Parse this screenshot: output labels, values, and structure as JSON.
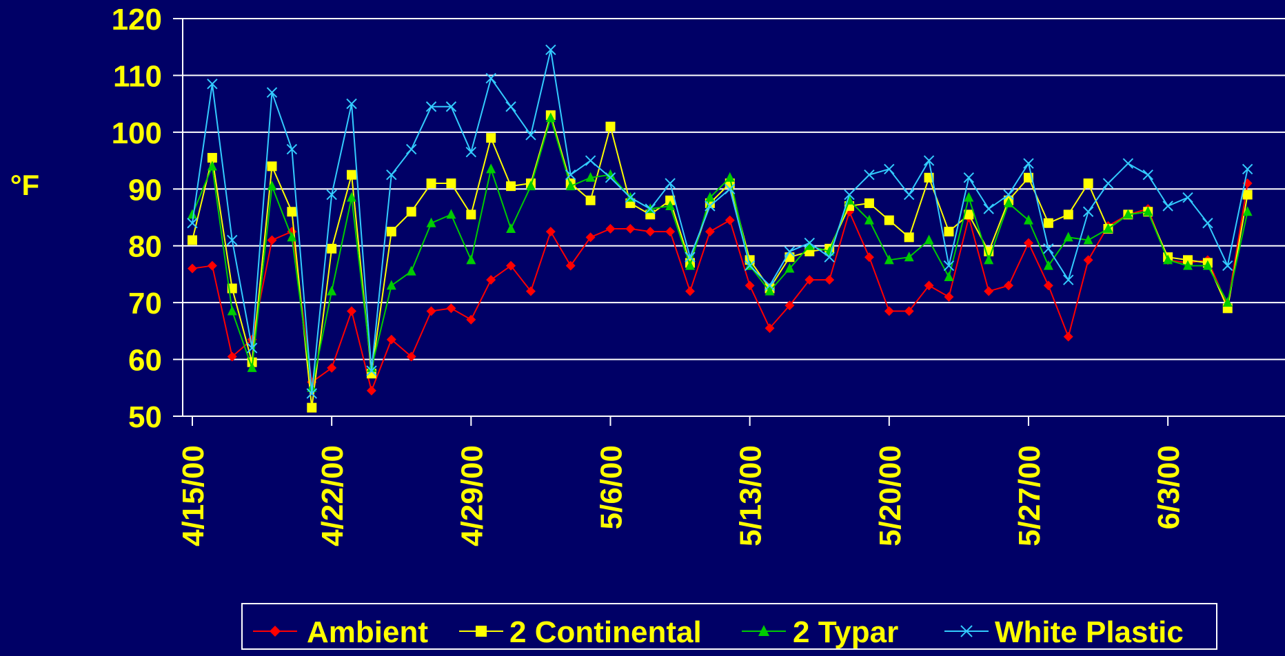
{
  "colors": {
    "background": "#000066",
    "text": "#FFFF00",
    "axis": "#FFFFFF",
    "grid": "#FFFFFF"
  },
  "chart_data": {
    "type": "line",
    "title": "",
    "ylabel": "°F",
    "xlabel": "",
    "ylim": [
      50,
      120
    ],
    "yticks": [
      "50",
      "60",
      "70",
      "80",
      "90",
      "100",
      "110",
      "120"
    ],
    "y_tick_values": [
      50,
      60,
      70,
      80,
      90,
      100,
      110,
      120
    ],
    "grid": true,
    "legend_position": "bottom",
    "x_tick_labels": [
      "4/15/00",
      "4/22/00",
      "4/29/00",
      "5/6/00",
      "5/13/00",
      "5/20/00",
      "5/27/00",
      "6/3/00"
    ],
    "x_tick_dates": [
      "2000-04-15",
      "2000-04-22",
      "2000-04-29",
      "2000-05-06",
      "2000-05-13",
      "2000-05-20",
      "2000-05-27",
      "2000-06-03"
    ],
    "x_range": [
      "2000-04-15",
      "2000-06-08"
    ],
    "series": [
      {
        "name": "Ambient",
        "color": "#FF0000",
        "marker": "diamond",
        "points": [
          [
            "2000-04-15",
            76
          ],
          [
            "2000-04-16",
            76.5
          ],
          [
            "2000-04-17",
            60.5
          ],
          [
            "2000-04-18",
            63.5
          ],
          [
            "2000-04-19",
            81
          ],
          [
            "2000-04-20",
            82.5
          ],
          [
            "2000-04-21",
            56
          ],
          [
            "2000-04-22",
            58.5
          ],
          [
            "2000-04-23",
            68.5
          ],
          [
            "2000-04-24",
            54.5
          ],
          [
            "2000-04-25",
            63.5
          ],
          [
            "2000-04-26",
            60.5
          ],
          [
            "2000-04-27",
            68.5
          ],
          [
            "2000-04-28",
            69
          ],
          [
            "2000-04-29",
            67
          ],
          [
            "2000-04-30",
            74
          ],
          [
            "2000-05-01",
            76.5
          ],
          [
            "2000-05-02",
            72
          ],
          [
            "2000-05-03",
            82.5
          ],
          [
            "2000-05-04",
            76.5
          ],
          [
            "2000-05-05",
            81.5
          ],
          [
            "2000-05-06",
            83
          ],
          [
            "2000-05-07",
            83
          ],
          [
            "2000-05-08",
            82.5
          ],
          [
            "2000-05-09",
            82.5
          ],
          [
            "2000-05-10",
            72
          ],
          [
            "2000-05-11",
            82.5
          ],
          [
            "2000-05-12",
            84.5
          ],
          [
            "2000-05-13",
            73
          ],
          [
            "2000-05-14",
            65.5
          ],
          [
            "2000-05-15",
            69.5
          ],
          [
            "2000-05-16",
            74
          ],
          [
            "2000-05-17",
            74
          ],
          [
            "2000-05-18",
            86
          ],
          [
            "2000-05-19",
            78
          ],
          [
            "2000-05-20",
            68.5
          ],
          [
            "2000-05-21",
            68.5
          ],
          [
            "2000-05-22",
            73
          ],
          [
            "2000-05-23",
            71
          ],
          [
            "2000-05-24",
            85
          ],
          [
            "2000-05-25",
            72
          ],
          [
            "2000-05-26",
            73
          ],
          [
            "2000-05-27",
            80.5
          ],
          [
            "2000-05-28",
            73
          ],
          [
            "2000-05-29",
            64
          ],
          [
            "2000-05-30",
            77.5
          ],
          [
            "2000-05-31",
            83.5
          ],
          [
            "2000-06-01",
            85.5
          ],
          [
            "2000-06-02",
            86.5
          ],
          [
            "2000-06-03",
            77.5
          ],
          [
            "2000-06-04",
            77
          ],
          [
            "2000-06-05",
            77.5
          ],
          [
            "2000-06-06",
            69.5
          ],
          [
            "2000-06-07",
            91
          ]
        ]
      },
      {
        "name": "2 Continental",
        "color": "#FFFF00",
        "marker": "square",
        "points": [
          [
            "2000-04-15",
            81
          ],
          [
            "2000-04-16",
            95.5
          ],
          [
            "2000-04-17",
            72.5
          ],
          [
            "2000-04-18",
            59.5
          ],
          [
            "2000-04-19",
            94
          ],
          [
            "2000-04-20",
            86
          ],
          [
            "2000-04-21",
            51.5
          ],
          [
            "2000-04-22",
            79.5
          ],
          [
            "2000-04-23",
            92.5
          ],
          [
            "2000-04-24",
            57.5
          ],
          [
            "2000-04-25",
            82.5
          ],
          [
            "2000-04-26",
            86
          ],
          [
            "2000-04-27",
            91
          ],
          [
            "2000-04-28",
            91
          ],
          [
            "2000-04-29",
            85.5
          ],
          [
            "2000-04-30",
            99
          ],
          [
            "2000-05-01",
            90.5
          ],
          [
            "2000-05-02",
            91
          ],
          [
            "2000-05-03",
            103
          ],
          [
            "2000-05-04",
            91
          ],
          [
            "2000-05-05",
            88
          ],
          [
            "2000-05-06",
            101
          ],
          [
            "2000-05-07",
            87.5
          ],
          [
            "2000-05-08",
            85.5
          ],
          [
            "2000-05-09",
            88
          ],
          [
            "2000-05-10",
            77
          ],
          [
            "2000-05-11",
            87.5
          ],
          [
            "2000-05-12",
            91
          ],
          [
            "2000-05-13",
            77.5
          ],
          [
            "2000-05-14",
            72.5
          ],
          [
            "2000-05-15",
            78
          ],
          [
            "2000-05-16",
            79
          ],
          [
            "2000-05-17",
            79.5
          ],
          [
            "2000-05-18",
            87
          ],
          [
            "2000-05-19",
            87.5
          ],
          [
            "2000-05-20",
            84.5
          ],
          [
            "2000-05-21",
            81.5
          ],
          [
            "2000-05-22",
            92
          ],
          [
            "2000-05-23",
            82.5
          ],
          [
            "2000-05-24",
            85.5
          ],
          [
            "2000-05-25",
            79
          ],
          [
            "2000-05-26",
            88
          ],
          [
            "2000-05-27",
            92
          ],
          [
            "2000-05-28",
            84
          ],
          [
            "2000-05-29",
            85.5
          ],
          [
            "2000-05-30",
            91
          ],
          [
            "2000-05-31",
            83
          ],
          [
            "2000-06-01",
            85.5
          ],
          [
            "2000-06-02",
            86
          ],
          [
            "2000-06-03",
            78
          ],
          [
            "2000-06-04",
            77.5
          ],
          [
            "2000-06-05",
            77
          ],
          [
            "2000-06-06",
            69
          ],
          [
            "2000-06-07",
            89
          ]
        ]
      },
      {
        "name": "2 Typar",
        "color": "#00CC00",
        "marker": "triangle",
        "points": [
          [
            "2000-04-15",
            85.5
          ],
          [
            "2000-04-16",
            94
          ],
          [
            "2000-04-17",
            68.5
          ],
          [
            "2000-04-18",
            58.5
          ],
          [
            "2000-04-19",
            90.5
          ],
          [
            "2000-04-20",
            81.5
          ],
          [
            "2000-04-21",
            55
          ],
          [
            "2000-04-22",
            72
          ],
          [
            "2000-04-23",
            88.5
          ],
          [
            "2000-04-24",
            58.5
          ],
          [
            "2000-04-25",
            73
          ],
          [
            "2000-04-26",
            75.5
          ],
          [
            "2000-04-27",
            84
          ],
          [
            "2000-04-28",
            85.5
          ],
          [
            "2000-04-29",
            77.5
          ],
          [
            "2000-04-30",
            93.5
          ],
          [
            "2000-05-01",
            83
          ],
          [
            "2000-05-02",
            90.5
          ],
          [
            "2000-05-03",
            102.5
          ],
          [
            "2000-05-04",
            90.5
          ],
          [
            "2000-05-05",
            92
          ],
          [
            "2000-05-06",
            92.5
          ],
          [
            "2000-05-07",
            88.5
          ],
          [
            "2000-05-08",
            86.5
          ],
          [
            "2000-05-09",
            87
          ],
          [
            "2000-05-10",
            76.5
          ],
          [
            "2000-05-11",
            88.5
          ],
          [
            "2000-05-12",
            92
          ],
          [
            "2000-05-13",
            76.5
          ],
          [
            "2000-05-14",
            72
          ],
          [
            "2000-05-15",
            76
          ],
          [
            "2000-05-16",
            80
          ],
          [
            "2000-05-17",
            79
          ],
          [
            "2000-05-18",
            88
          ],
          [
            "2000-05-19",
            84.5
          ],
          [
            "2000-05-20",
            77.5
          ],
          [
            "2000-05-21",
            78
          ],
          [
            "2000-05-22",
            81
          ],
          [
            "2000-05-23",
            74.5
          ],
          [
            "2000-05-24",
            88.5
          ],
          [
            "2000-05-25",
            77.5
          ],
          [
            "2000-05-26",
            87.5
          ],
          [
            "2000-05-27",
            84.5
          ],
          [
            "2000-05-28",
            76.5
          ],
          [
            "2000-05-29",
            81.5
          ],
          [
            "2000-05-30",
            81
          ],
          [
            "2000-05-31",
            83
          ],
          [
            "2000-06-01",
            85.5
          ],
          [
            "2000-06-02",
            86
          ],
          [
            "2000-06-03",
            77.5
          ],
          [
            "2000-06-04",
            76.5
          ],
          [
            "2000-06-05",
            76.5
          ],
          [
            "2000-06-06",
            70
          ],
          [
            "2000-06-07",
            86
          ]
        ]
      },
      {
        "name": "White Plastic",
        "color": "#33CCFF",
        "marker": "x",
        "points": [
          [
            "2000-04-15",
            84
          ],
          [
            "2000-04-16",
            108.5
          ],
          [
            "2000-04-17",
            81
          ],
          [
            "2000-04-18",
            62
          ],
          [
            "2000-04-19",
            107
          ],
          [
            "2000-04-20",
            97
          ],
          [
            "2000-04-21",
            54
          ],
          [
            "2000-04-22",
            89
          ],
          [
            "2000-04-23",
            105
          ],
          [
            "2000-04-24",
            58
          ],
          [
            "2000-04-25",
            92.5
          ],
          [
            "2000-04-26",
            97
          ],
          [
            "2000-04-27",
            104.5
          ],
          [
            "2000-04-28",
            104.5
          ],
          [
            "2000-04-29",
            96.5
          ],
          [
            "2000-04-30",
            109.5
          ],
          [
            "2000-05-01",
            104.5
          ],
          [
            "2000-05-02",
            99.5
          ],
          [
            "2000-05-03",
            114.5
          ],
          [
            "2000-05-04",
            92.5
          ],
          [
            "2000-05-05",
            95
          ],
          [
            "2000-05-06",
            92
          ],
          [
            "2000-05-07",
            88.5
          ],
          [
            "2000-05-08",
            86.5
          ],
          [
            "2000-05-09",
            91
          ],
          [
            "2000-05-10",
            78
          ],
          [
            "2000-05-11",
            87
          ],
          [
            "2000-05-12",
            90
          ],
          [
            "2000-05-13",
            76.5
          ],
          [
            "2000-05-14",
            73
          ],
          [
            "2000-05-15",
            79
          ],
          [
            "2000-05-16",
            80.5
          ],
          [
            "2000-05-17",
            78
          ],
          [
            "2000-05-18",
            89
          ],
          [
            "2000-05-19",
            92.5
          ],
          [
            "2000-05-20",
            93.5
          ],
          [
            "2000-05-21",
            89
          ],
          [
            "2000-05-22",
            95
          ],
          [
            "2000-05-23",
            76.5
          ],
          [
            "2000-05-24",
            92
          ],
          [
            "2000-05-25",
            86.5
          ],
          [
            "2000-05-26",
            89
          ],
          [
            "2000-05-27",
            94.5
          ],
          [
            "2000-05-28",
            79.5
          ],
          [
            "2000-05-29",
            74
          ],
          [
            "2000-05-30",
            86
          ],
          [
            "2000-05-31",
            91
          ],
          [
            "2000-06-01",
            94.5
          ],
          [
            "2000-06-02",
            92.5
          ],
          [
            "2000-06-03",
            87
          ],
          [
            "2000-06-04",
            88.5
          ],
          [
            "2000-06-05",
            84
          ],
          [
            "2000-06-06",
            76.5
          ],
          [
            "2000-06-07",
            93.5
          ]
        ]
      }
    ]
  }
}
